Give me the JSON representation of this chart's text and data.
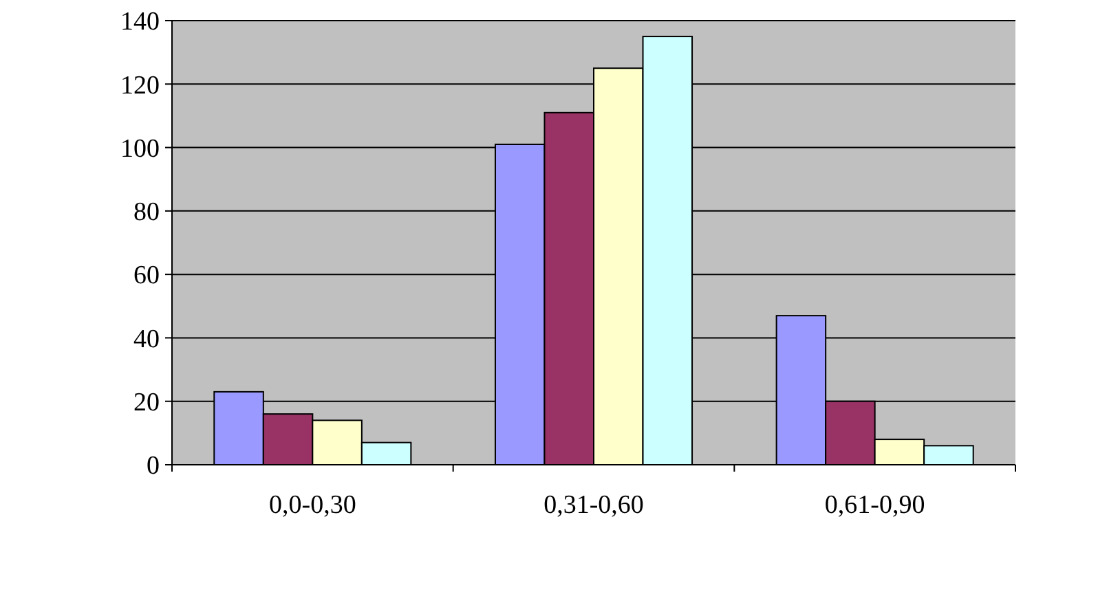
{
  "chart_data": {
    "type": "bar",
    "categories": [
      "0,0-0,30",
      "0,31-0,60",
      "0,61-0,90"
    ],
    "series": [
      {
        "color": "#9999ff",
        "values": [
          23,
          101,
          47
        ]
      },
      {
        "color": "#993366",
        "values": [
          16,
          111,
          20
        ]
      },
      {
        "color": "#ffffcc",
        "values": [
          14,
          125,
          8
        ]
      },
      {
        "color": "#ccffff",
        "values": [
          7,
          135,
          6
        ]
      }
    ],
    "ylim": [
      0,
      140
    ],
    "yticks": [
      0,
      20,
      40,
      60,
      80,
      100,
      120,
      140
    ],
    "grid": "y"
  }
}
